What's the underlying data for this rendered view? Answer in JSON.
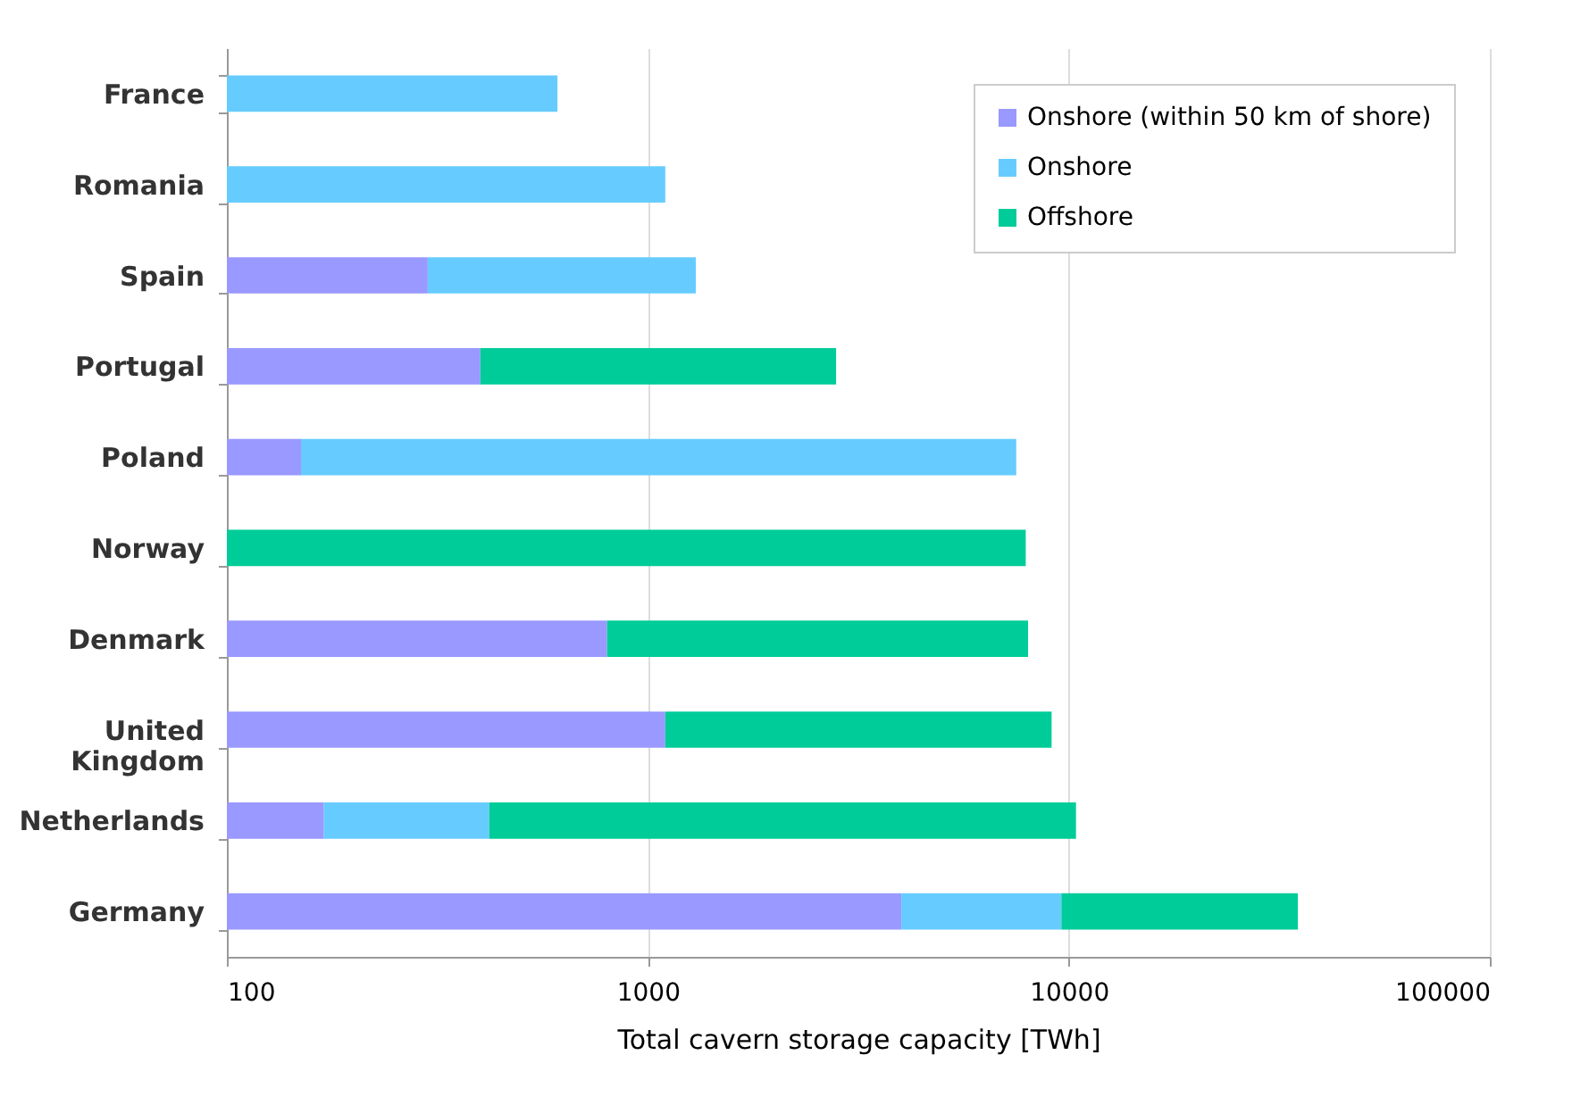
{
  "chart_data": {
    "type": "bar",
    "orientation": "horizontal",
    "stacked": true,
    "log": "x",
    "xlabel": "Total cavern storage capacity [TWh]",
    "categories": [
      "France",
      "Romania",
      "Spain",
      "Portugal",
      "Poland",
      "Norway",
      "Denmark",
      "United Kingdom",
      "Netherlands",
      "Germany"
    ],
    "series": [
      {
        "name": "Onshore (within 50 km of shore)",
        "color": "#9999ff",
        "values": [
          null,
          null,
          300,
          400,
          150,
          null,
          800,
          1100,
          170,
          4000
        ]
      },
      {
        "name": "Onshore",
        "color": "#66ccff",
        "values": [
          610,
          1100,
          1000,
          null,
          7350,
          null,
          null,
          null,
          250,
          5600
        ]
      },
      {
        "name": "Offshore",
        "color": "#00cc99",
        "values": [
          null,
          null,
          null,
          2400,
          null,
          7900,
          7200,
          8000,
          9980,
          25400
        ]
      }
    ],
    "xlim": [
      100,
      100000
    ],
    "xticks": [
      100,
      1000,
      10000,
      100000
    ],
    "grid": "x",
    "legend": "top right"
  }
}
